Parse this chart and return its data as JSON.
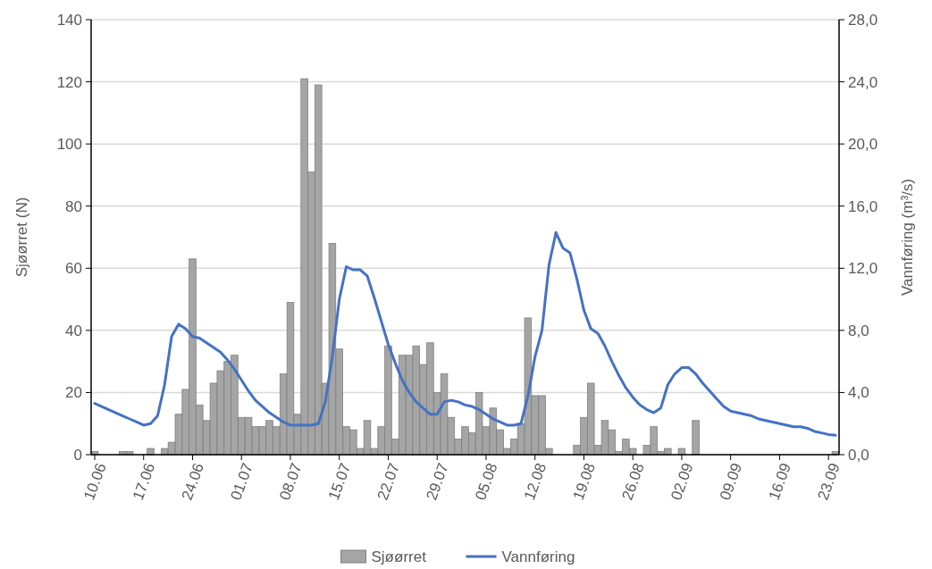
{
  "chart_data": {
    "type": "bar",
    "ylabel": "Sjøørret (N)",
    "y2label": "Vannføring (m³/s)",
    "categories": [
      "10.06",
      null,
      null,
      null,
      null,
      null,
      null,
      "17.06",
      null,
      null,
      null,
      null,
      null,
      null,
      "24.06",
      null,
      null,
      null,
      null,
      null,
      null,
      "01.07",
      null,
      null,
      null,
      null,
      null,
      null,
      "08.07",
      null,
      null,
      null,
      null,
      null,
      null,
      "15.07",
      null,
      null,
      null,
      null,
      null,
      null,
      "22.07",
      null,
      null,
      null,
      null,
      null,
      null,
      "29.07",
      null,
      null,
      null,
      null,
      null,
      null,
      "05.08",
      null,
      null,
      null,
      null,
      null,
      null,
      "12.08",
      null,
      null,
      null,
      null,
      null,
      null,
      "19.08",
      null,
      null,
      null,
      null,
      null,
      null,
      "26.08",
      null,
      null,
      null,
      null,
      null,
      null,
      "02.09",
      null,
      null,
      null,
      null,
      null,
      null,
      "09.09",
      null,
      null,
      null,
      null,
      null,
      null,
      "16.09",
      null,
      null,
      null,
      null,
      null,
      null,
      "23.09",
      null
    ],
    "series": [
      {
        "name": "Sjøørret",
        "color": "#a5a5a5",
        "values": [
          1,
          0,
          0,
          0,
          1,
          1,
          0,
          0,
          2,
          0,
          2,
          4,
          13,
          21,
          63,
          16,
          11,
          23,
          27,
          30,
          32,
          12,
          12,
          9,
          9,
          11,
          9,
          26,
          49,
          13,
          121,
          91,
          119,
          23,
          68,
          34,
          9,
          8,
          2,
          11,
          2,
          9,
          35,
          5,
          32,
          32,
          35,
          29,
          36,
          20,
          26,
          12,
          5,
          9,
          7,
          20,
          9,
          15,
          8,
          2,
          5,
          10,
          44,
          19,
          19,
          2,
          0,
          0,
          0,
          3,
          12,
          23,
          3,
          11,
          8,
          1,
          5,
          2,
          0,
          3,
          9,
          1,
          2,
          0,
          2,
          0,
          11,
          0,
          0,
          0,
          0,
          0,
          0,
          0,
          0,
          0,
          0,
          0,
          0,
          0,
          0,
          0,
          0,
          0,
          0,
          0,
          1
        ]
      },
      {
        "name": "Vannføring",
        "type": "line",
        "axis": "y2",
        "color": "#4472c4",
        "values": [
          3.3,
          3.1,
          2.9,
          2.7,
          2.5,
          2.3,
          2.1,
          1.9,
          2.0,
          2.5,
          4.5,
          7.6,
          8.4,
          8.1,
          7.6,
          7.5,
          7.2,
          6.9,
          6.6,
          6.1,
          5.5,
          4.8,
          4.1,
          3.5,
          3.1,
          2.7,
          2.4,
          2.1,
          1.9,
          1.9,
          1.9,
          1.9,
          2.0,
          3.4,
          6.3,
          10.0,
          12.1,
          11.9,
          11.9,
          11.5,
          10.1,
          8.6,
          7.1,
          5.9,
          4.8,
          4.0,
          3.4,
          3.0,
          2.6,
          2.6,
          3.4,
          3.5,
          3.4,
          3.2,
          3.1,
          2.9,
          2.6,
          2.3,
          2.1,
          1.9,
          1.9,
          2.0,
          3.8,
          6.3,
          8.0,
          12.2,
          14.3,
          13.3,
          13.0,
          11.3,
          9.3,
          8.1,
          7.8,
          7.0,
          6.0,
          5.1,
          4.3,
          3.7,
          3.2,
          2.9,
          2.7,
          3.0,
          4.5,
          5.2,
          5.6,
          5.6,
          5.2,
          4.6,
          4.1,
          3.6,
          3.1,
          2.8,
          2.7,
          2.6,
          2.5,
          2.3,
          2.2,
          2.1,
          2.0,
          1.9,
          1.8,
          1.8,
          1.7,
          1.5,
          1.4,
          1.3,
          1.25
        ]
      }
    ],
    "ylim": [
      0,
      140
    ],
    "yticks": [
      0,
      20,
      40,
      60,
      80,
      100,
      120,
      140
    ],
    "y2lim": [
      0,
      28
    ],
    "y2ticks": [
      {
        "value": 0,
        "label": "0,0"
      },
      {
        "value": 4,
        "label": "4,0"
      },
      {
        "value": 8,
        "label": "8,0"
      },
      {
        "value": 12,
        "label": "12,0"
      },
      {
        "value": 16,
        "label": "16,0"
      },
      {
        "value": 20,
        "label": "20,0"
      },
      {
        "value": 24,
        "label": "24,0"
      },
      {
        "value": 28,
        "label": "28,0"
      }
    ],
    "grid": "y",
    "legend": "bottom",
    "marker": "none",
    "line_style": "solid"
  }
}
